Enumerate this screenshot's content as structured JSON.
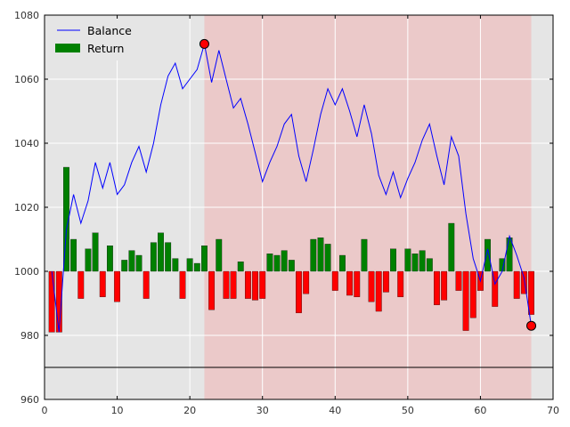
{
  "colors": {
    "plot_background": "#e5e5e5",
    "grid": "#ffffff",
    "highlight_region": "#f0b3b3",
    "balance_line": "#0000ff",
    "positive_return": "#008000",
    "negative_return": "#ff0000",
    "marker": "#ff0000",
    "reference_line": "#000000"
  },
  "chart_data": {
    "type": "line",
    "title": "",
    "xlabel": "",
    "ylabel": "",
    "xlim": [
      0,
      70
    ],
    "ylim": [
      960,
      1080
    ],
    "x_ticks": [
      0,
      10,
      20,
      30,
      40,
      50,
      60,
      70
    ],
    "y_ticks": [
      960,
      980,
      1000,
      1020,
      1040,
      1060,
      1080
    ],
    "grid": true,
    "legend": {
      "position": "top-left",
      "entries": [
        "Balance",
        "Return"
      ]
    },
    "highlight_span": {
      "x_start": 22,
      "x_end": 67
    },
    "reference_line_y": 970,
    "return_baseline": 1000,
    "series": [
      {
        "name": "Balance",
        "kind": "line",
        "x": [
          1,
          2,
          3,
          4,
          5,
          6,
          7,
          8,
          9,
          10,
          11,
          12,
          13,
          14,
          15,
          16,
          17,
          18,
          19,
          20,
          21,
          22,
          23,
          24,
          25,
          26,
          27,
          28,
          29,
          30,
          31,
          32,
          33,
          34,
          35,
          36,
          37,
          38,
          39,
          40,
          41,
          42,
          43,
          44,
          45,
          46,
          47,
          48,
          49,
          50,
          51,
          52,
          53,
          54,
          55,
          56,
          57,
          58,
          59,
          60,
          61,
          62,
          63,
          64,
          65,
          66,
          67
        ],
        "y": [
          1000,
          981,
          1013,
          1024,
          1015,
          1022,
          1034,
          1026,
          1034,
          1024,
          1027,
          1034,
          1039,
          1031,
          1040,
          1052,
          1061,
          1065,
          1057,
          1060,
          1063,
          1071,
          1059,
          1069,
          1060,
          1051,
          1054,
          1046,
          1037,
          1028,
          1034,
          1039,
          1046,
          1049,
          1036,
          1028,
          1038,
          1049,
          1057,
          1052,
          1057,
          1050,
          1042,
          1052,
          1043,
          1030,
          1024,
          1031,
          1023,
          1029,
          1034,
          1041,
          1046,
          1036,
          1027,
          1042,
          1036,
          1018,
          1004,
          997,
          1007,
          996,
          1000,
          1011,
          1005,
          998,
          983
        ]
      },
      {
        "name": "Return",
        "kind": "bar",
        "x": [
          1,
          2,
          3,
          4,
          5,
          6,
          7,
          8,
          9,
          10,
          11,
          12,
          13,
          14,
          15,
          16,
          17,
          18,
          19,
          20,
          21,
          22,
          23,
          24,
          25,
          26,
          27,
          28,
          29,
          30,
          31,
          32,
          33,
          34,
          35,
          36,
          37,
          38,
          39,
          40,
          41,
          42,
          43,
          44,
          45,
          46,
          47,
          48,
          49,
          50,
          51,
          52,
          53,
          54,
          55,
          56,
          57,
          58,
          59,
          60,
          61,
          62,
          63,
          64,
          65,
          66,
          67
        ],
        "values": [
          -19,
          -19,
          32.5,
          10,
          -8.5,
          7,
          12,
          -8,
          8,
          -9.5,
          3.5,
          6.5,
          5,
          -8.5,
          9,
          12,
          9,
          4,
          -8.5,
          4,
          2.5,
          8,
          -12,
          10,
          -8.5,
          -8.5,
          3,
          -8.5,
          -9,
          -8.5,
          5.5,
          5,
          6.5,
          3.5,
          -13,
          -7,
          10,
          10.5,
          8.5,
          -6,
          5,
          -7.5,
          -8,
          10,
          -9.5,
          -12.5,
          -6.5,
          7,
          -8,
          7,
          5.5,
          6.5,
          4,
          -10.5,
          -9,
          15,
          -6,
          -18.5,
          -14.5,
          -6,
          10,
          -11,
          4,
          10.5,
          -8.5,
          -7,
          -13.5
        ]
      }
    ],
    "markers": [
      {
        "x": 22,
        "y": 1071
      },
      {
        "x": 67,
        "y": 983
      }
    ]
  }
}
